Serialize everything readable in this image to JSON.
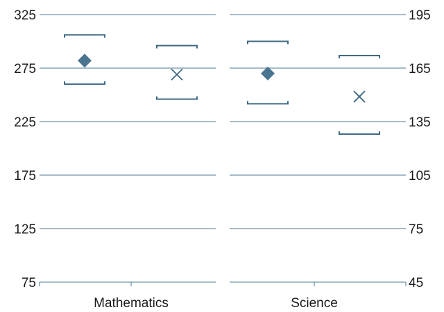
{
  "colors": {
    "grid": "#4d7a94",
    "mark": "#3e6a84",
    "diamond": "#4a7591"
  },
  "chart_data": [
    {
      "type": "scatter",
      "panel": "Mathematics",
      "axis_side": "left",
      "ylim": [
        75,
        325
      ],
      "yticks": [
        75,
        125,
        175,
        225,
        275,
        325
      ],
      "grid": true,
      "category": "Mathematics",
      "series": [
        {
          "marker": "diamond",
          "value": 282,
          "low": 260,
          "high": 306
        },
        {
          "marker": "cross",
          "value": 269,
          "low": 246,
          "high": 296
        }
      ]
    },
    {
      "type": "scatter",
      "panel": "Science",
      "axis_side": "right",
      "ylim": [
        45,
        195
      ],
      "yticks": [
        45,
        75,
        105,
        135,
        165,
        195
      ],
      "grid": true,
      "category": "Science",
      "series": [
        {
          "marker": "diamond",
          "value": 162,
          "low": 145,
          "high": 180
        },
        {
          "marker": "cross",
          "value": 149,
          "low": 128,
          "high": 172
        }
      ]
    }
  ]
}
